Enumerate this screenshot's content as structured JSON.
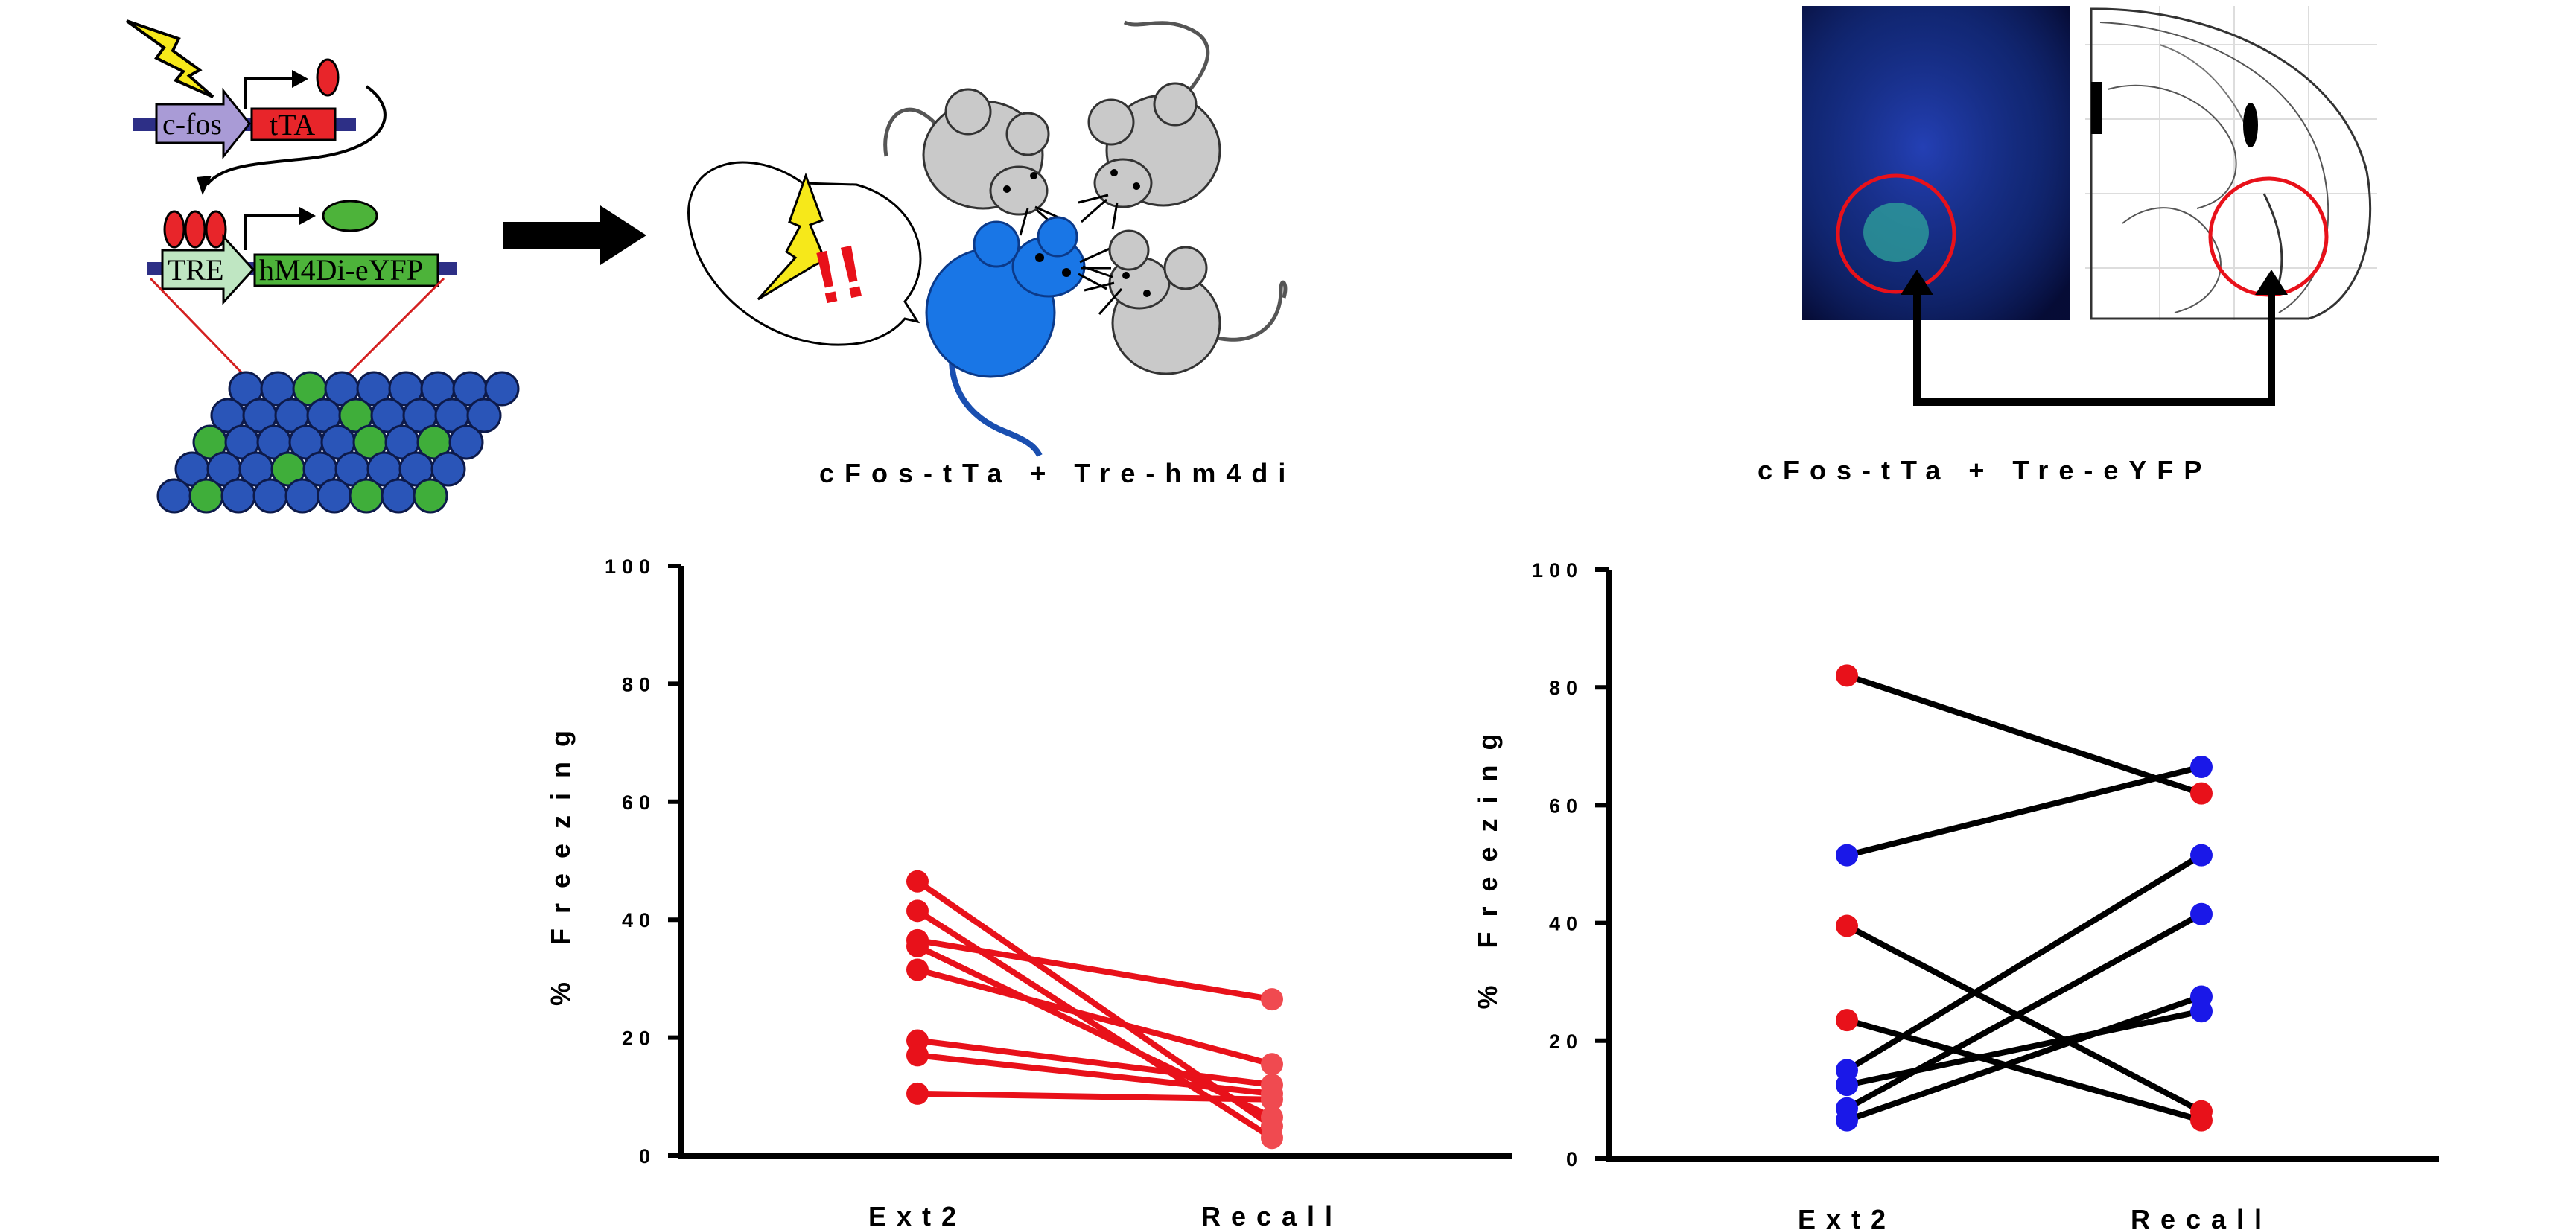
{
  "colors": {
    "red": "#e8111a",
    "blue": "#1a18e8",
    "black": "#000000",
    "mouse_blue": "#1976e6",
    "mouse_gray": "#c9c9c9",
    "tissue_dark": "#0c1a66"
  },
  "schematic": {
    "promoter_label": "c-fos",
    "transactivator_label": "tTA",
    "response_label": "TRE",
    "effector_label": "hM4Di-eYFP",
    "exp1_caption": "cFos-tTa + Tre-hm4di",
    "exp2_caption": "cFos-tTa + Tre-eYFP",
    "alert_text": "!!",
    "icons": [
      "lightning-icon",
      "arrow-right-icon",
      "mouse-icon",
      "speech-bubble-icon"
    ]
  },
  "chart_data": [
    {
      "type": "line",
      "title": "",
      "xlabel": "",
      "ylabel": "% Freezing",
      "categories": [
        "Ext2",
        "Recall"
      ],
      "ylim": [
        0,
        100
      ],
      "yticks": [
        0,
        20,
        40,
        60,
        80,
        100
      ],
      "grid": false,
      "series": [
        {
          "values": [
            46.5,
            5.0
          ],
          "color": "#e8111a",
          "colors": [
            "#e8111a",
            "#f04a50"
          ]
        },
        {
          "values": [
            41.5,
            3.0
          ],
          "color": "#e8111a",
          "colors": [
            "#e8111a",
            "#f04a50"
          ]
        },
        {
          "values": [
            36.5,
            26.5
          ],
          "color": "#e8111a",
          "colors": [
            "#e8111a",
            "#f04a50"
          ]
        },
        {
          "values": [
            35.5,
            6.5
          ],
          "color": "#e8111a",
          "colors": [
            "#e8111a",
            "#f04a50"
          ]
        },
        {
          "values": [
            31.5,
            15.5
          ],
          "color": "#e8111a",
          "colors": [
            "#e8111a",
            "#f04a50"
          ]
        },
        {
          "values": [
            19.5,
            12.0
          ],
          "color": "#e8111a",
          "colors": [
            "#e8111a",
            "#f04a50"
          ]
        },
        {
          "values": [
            17.0,
            10.5
          ],
          "color": "#e8111a",
          "colors": [
            "#e8111a",
            "#f04a50"
          ]
        },
        {
          "values": [
            10.5,
            9.5
          ],
          "color": "#e8111a",
          "colors": [
            "#e8111a",
            "#f04a50"
          ]
        }
      ]
    },
    {
      "type": "line",
      "title": "",
      "xlabel": "",
      "ylabel": "% Freezing",
      "categories": [
        "Ext2",
        "Recall"
      ],
      "ylim": [
        0,
        100
      ],
      "yticks": [
        0,
        20,
        40,
        60,
        80,
        100
      ],
      "grid": false,
      "series": [
        {
          "values": [
            82.0,
            62.0
          ],
          "color": "#000000",
          "colors": [
            "#e8111a",
            "#e8111a"
          ]
        },
        {
          "values": [
            51.5,
            66.5
          ],
          "color": "#000000",
          "colors": [
            "#1a18e8",
            "#1a18e8"
          ]
        },
        {
          "values": [
            39.5,
            8.0
          ],
          "color": "#000000",
          "colors": [
            "#e8111a",
            "#e8111a"
          ]
        },
        {
          "values": [
            23.5,
            6.5
          ],
          "color": "#000000",
          "colors": [
            "#e8111a",
            "#e8111a"
          ]
        },
        {
          "values": [
            15.0,
            51.5
          ],
          "color": "#000000",
          "colors": [
            "#1a18e8",
            "#1a18e8"
          ]
        },
        {
          "values": [
            12.5,
            25.0
          ],
          "color": "#000000",
          "colors": [
            "#1a18e8",
            "#1a18e8"
          ]
        },
        {
          "values": [
            8.5,
            41.5
          ],
          "color": "#000000",
          "colors": [
            "#1a18e8",
            "#1a18e8"
          ]
        },
        {
          "values": [
            6.5,
            27.5
          ],
          "color": "#000000",
          "colors": [
            "#1a18e8",
            "#1a18e8"
          ]
        }
      ]
    }
  ]
}
